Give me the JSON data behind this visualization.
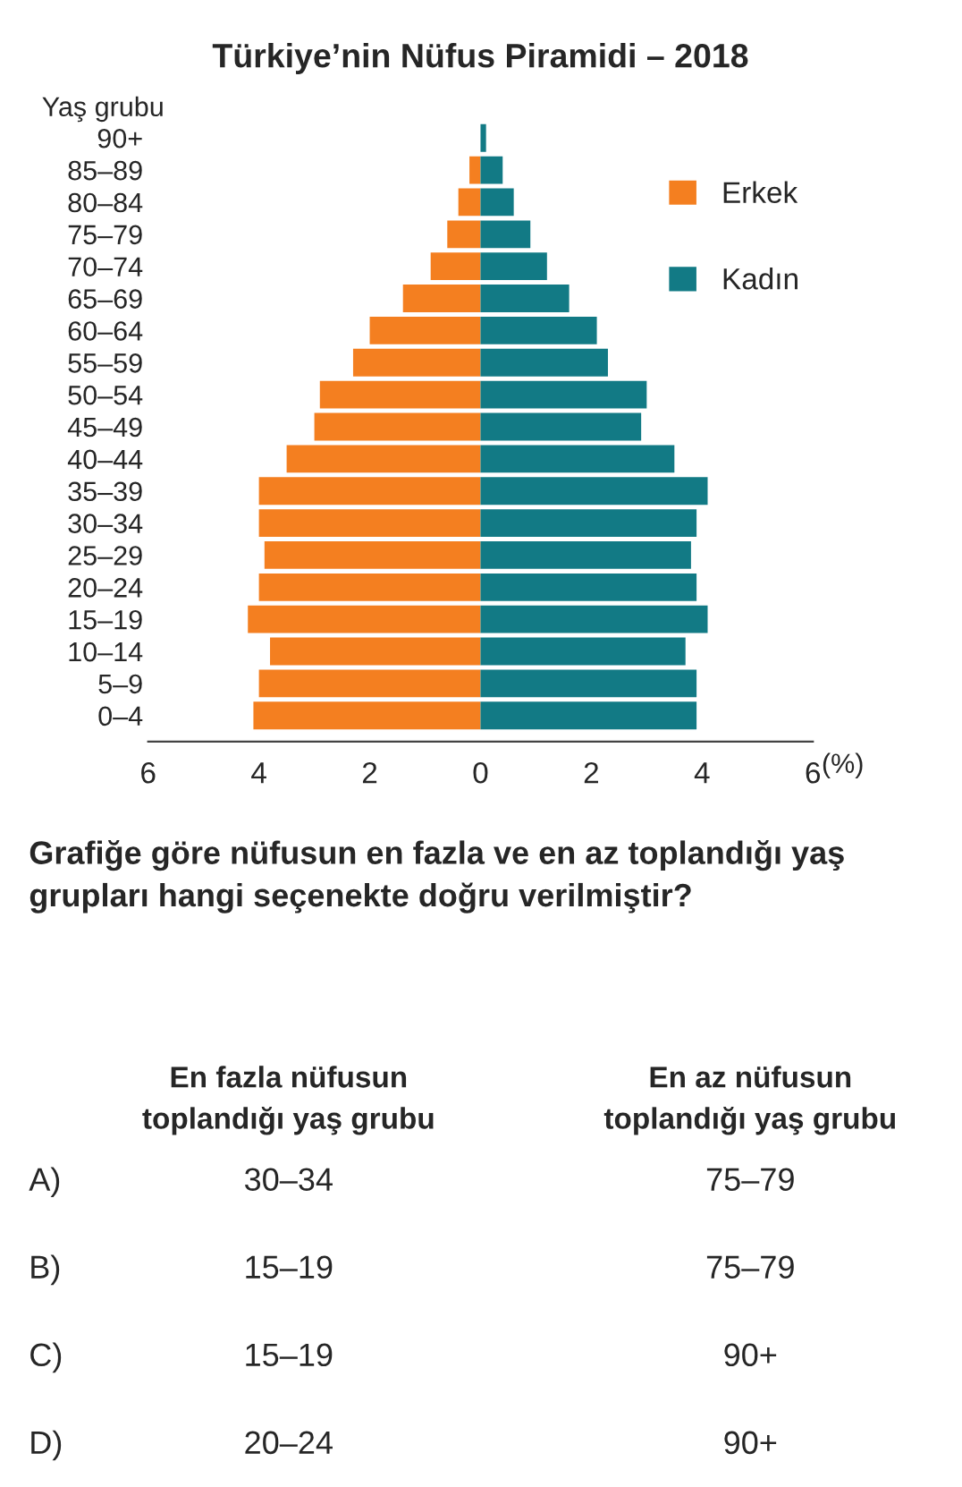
{
  "chart_data": {
    "type": "bar",
    "orientation": "horizontal",
    "stacked": true,
    "title": "Türkiye’nin Nüfus Piramidi – 2018",
    "ylabel": "Yaş grubu",
    "xlabel": "(%)",
    "categories": [
      "90+",
      "85–89",
      "80–84",
      "75–79",
      "70–74",
      "65–69",
      "60–64",
      "55–59",
      "50–54",
      "45–49",
      "40–44",
      "35–39",
      "30–34",
      "25–29",
      "20–24",
      "15–19",
      "10–14",
      "5–9",
      "0–4"
    ],
    "series": [
      {
        "name": "Erkek",
        "color": "#f47f20",
        "values": [
          0,
          -0.2,
          -0.4,
          -0.6,
          -0.9,
          -1.4,
          -2.0,
          -2.3,
          -2.9,
          -3.0,
          -3.5,
          -4.0,
          -4.0,
          -3.9,
          -4.0,
          -4.2,
          -3.8,
          -4.0,
          -4.1
        ]
      },
      {
        "name": "Kadın",
        "color": "#127a85",
        "values": [
          0.1,
          0.4,
          0.6,
          0.9,
          1.2,
          1.6,
          2.1,
          2.3,
          3.0,
          2.9,
          3.5,
          4.1,
          3.9,
          3.8,
          3.9,
          4.1,
          3.7,
          3.9,
          3.9
        ]
      }
    ],
    "xlim": [
      -6,
      6
    ],
    "xticks": [
      {
        "value": -6,
        "label": "6"
      },
      {
        "value": -4,
        "label": "4"
      },
      {
        "value": -2,
        "label": "2"
      },
      0,
      2,
      4,
      6
    ],
    "legend": "top right",
    "annotations": [
      "Grafiğe göre nüfusun en fazla ve en az toplandığı yaş grupları hangi seçenekte doğru verilmiştir?",
      "En fazla nüfusun\ntoplandığı yaş grubu",
      "En az nüfusun\ntoplandığı yaş grubu",
      "A)",
      "30–34",
      "75–79",
      "B)",
      "15–19",
      "75–79",
      "C)",
      "15–19",
      "90+",
      "D)",
      "20–24",
      "90+"
    ]
  }
}
